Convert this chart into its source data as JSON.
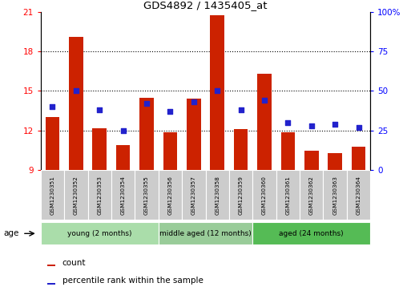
{
  "title": "GDS4892 / 1435405_at",
  "samples": [
    "GSM1230351",
    "GSM1230352",
    "GSM1230353",
    "GSM1230354",
    "GSM1230355",
    "GSM1230356",
    "GSM1230357",
    "GSM1230358",
    "GSM1230359",
    "GSM1230360",
    "GSM1230361",
    "GSM1230362",
    "GSM1230363",
    "GSM1230364"
  ],
  "count_values": [
    13.0,
    19.1,
    12.2,
    10.9,
    14.5,
    11.9,
    14.4,
    20.7,
    12.1,
    16.3,
    11.9,
    10.5,
    10.3,
    10.8
  ],
  "percentile_values": [
    40,
    50,
    38,
    25,
    42,
    37,
    43,
    50,
    38,
    44,
    30,
    28,
    29,
    27
  ],
  "ylim_left": [
    9,
    21
  ],
  "ylim_right": [
    0,
    100
  ],
  "yticks_left": [
    9,
    12,
    15,
    18,
    21
  ],
  "yticks_right": [
    0,
    25,
    50,
    75,
    100
  ],
  "bar_color": "#cc2200",
  "marker_color": "#2222cc",
  "group_labels": [
    "young (2 months)",
    "middle aged (12 months)",
    "aged (24 months)"
  ],
  "group_starts": [
    0,
    5,
    9
  ],
  "group_ends": [
    5,
    9,
    14
  ],
  "group_colors": [
    "#aaddaa",
    "#99cc99",
    "#55bb55"
  ],
  "sample_bg_color": "#cccccc",
  "age_label": "age",
  "legend_count": "count",
  "legend_percentile": "percentile rank within the sample",
  "baseline": 9,
  "grid_yticks": [
    12,
    15,
    18
  ]
}
